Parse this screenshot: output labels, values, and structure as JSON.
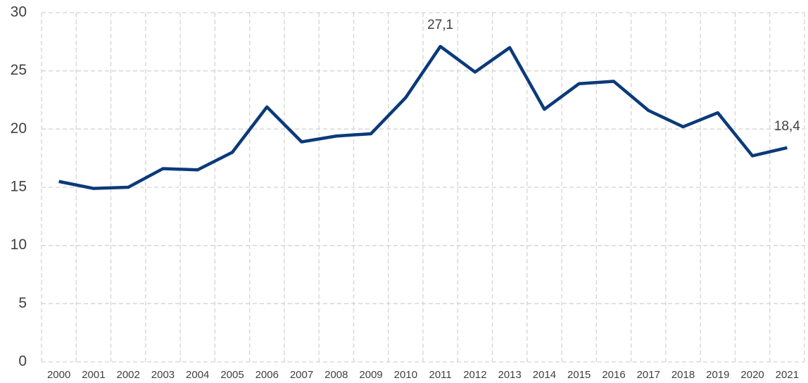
{
  "chart_data": {
    "type": "line",
    "categories": [
      "2000",
      "2001",
      "2002",
      "2003",
      "2004",
      "2005",
      "2006",
      "2007",
      "2008",
      "2009",
      "2010",
      "2011",
      "2012",
      "2013",
      "2014",
      "2015",
      "2016",
      "2017",
      "2018",
      "2019",
      "2020",
      "2021"
    ],
    "series": [
      {
        "color": "#0b3a7a",
        "values": [
          15.5,
          14.9,
          15.0,
          16.6,
          16.5,
          18.0,
          21.9,
          18.9,
          19.4,
          19.6,
          22.7,
          27.1,
          24.9,
          27.0,
          21.7,
          23.9,
          24.1,
          21.6,
          20.2,
          21.4,
          17.7,
          18.4
        ],
        "value_labels": [
          null,
          null,
          null,
          null,
          null,
          null,
          null,
          null,
          null,
          null,
          null,
          "27,1",
          null,
          null,
          null,
          null,
          null,
          null,
          null,
          null,
          null,
          "18,4"
        ]
      }
    ],
    "ylim": [
      0,
      30
    ],
    "yticks": [
      0,
      5,
      10,
      15,
      20,
      25,
      30
    ],
    "grid": true
  }
}
